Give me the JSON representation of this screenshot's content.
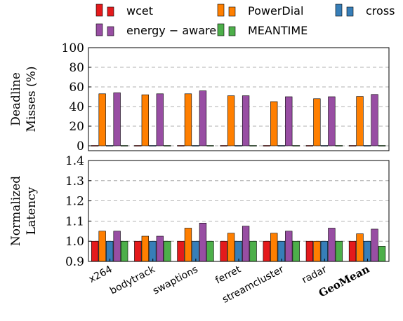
{
  "chart_data": {
    "type": "bar",
    "categories": [
      "x264",
      "bodytrack",
      "swaptions",
      "ferret",
      "streamcluster",
      "radar",
      "GeoMean"
    ],
    "bold_categories": [
      "GeoMean"
    ],
    "legend": [
      {
        "name": "wcet",
        "color": "#e41a1c"
      },
      {
        "name": "PowerDial",
        "color": "#ff7f00"
      },
      {
        "name": "cross",
        "color": "#377eb8"
      },
      {
        "name": "energy − aware",
        "color": "#984ea3"
      },
      {
        "name": "MEANTIME",
        "color": "#4daf4a"
      }
    ],
    "panels": [
      {
        "id": "deadline",
        "ylabel": [
          "Deadline",
          "Misses (%)"
        ],
        "ylim": [
          -5,
          100
        ],
        "yticks": [
          "0",
          "20",
          "40",
          "60",
          "80",
          "100"
        ],
        "grid": true,
        "series": [
          {
            "name": "wcet",
            "values": [
              0,
              0,
              0,
              0,
              0,
              0,
              0
            ]
          },
          {
            "name": "PowerDial",
            "values": [
              53,
              52,
              53,
              51,
              45,
              48,
              50.3
            ]
          },
          {
            "name": "cross",
            "values": [
              0,
              0,
              0,
              0,
              0,
              0,
              0
            ]
          },
          {
            "name": "energy − aware",
            "values": [
              54,
              53,
              56,
              51,
              50,
              50,
              52.3
            ]
          },
          {
            "name": "MEANTIME",
            "values": [
              0,
              0,
              0,
              0,
              0,
              0,
              0
            ]
          }
        ]
      },
      {
        "id": "latency",
        "ylabel": [
          "Normalized",
          "Latency"
        ],
        "ylim": [
          0.9,
          1.4
        ],
        "yticks": [
          "0.9",
          "1.0",
          "1.1",
          "1.2",
          "1.3",
          "1.4"
        ],
        "grid": true,
        "series": [
          {
            "name": "wcet",
            "values": [
              1.0,
              1.0,
              1.0,
              1.0,
              1.0,
              1.0,
              1.0
            ]
          },
          {
            "name": "PowerDial",
            "values": [
              1.05,
              1.025,
              1.065,
              1.04,
              1.04,
              1.0,
              1.037
            ]
          },
          {
            "name": "cross",
            "values": [
              1.0,
              1.0,
              1.0,
              1.0,
              1.0,
              1.0,
              1.0
            ]
          },
          {
            "name": "energy − aware",
            "values": [
              1.05,
              1.025,
              1.09,
              1.075,
              1.05,
              1.065,
              1.06
            ]
          },
          {
            "name": "MEANTIME",
            "values": [
              1.0,
              1.0,
              1.0,
              1.0,
              1.0,
              1.0,
              0.975
            ]
          }
        ]
      }
    ]
  }
}
